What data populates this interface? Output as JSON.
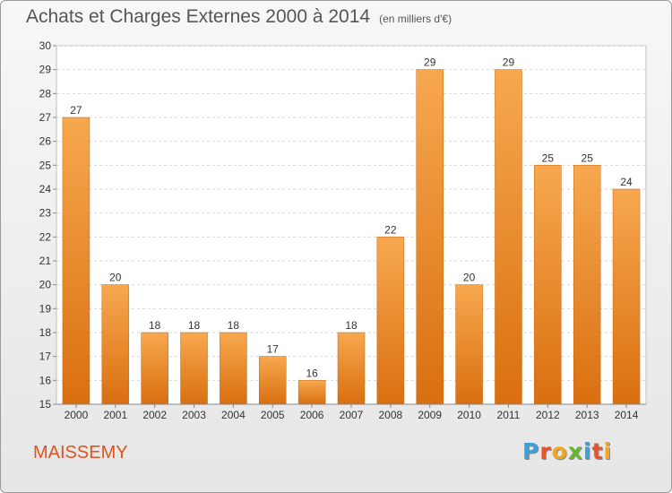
{
  "title": "Achats et Charges Externes 2000 à 2014",
  "subtitle": "(en milliers d'€)",
  "commune": "MAISSEMY",
  "logo": {
    "text": "Proxiti",
    "letter_colors": [
      "#3aa0d8",
      "#e8552a",
      "#f2a81d",
      "#6bb52e",
      "#3aa0d8",
      "#e8552a",
      "#f2a81d"
    ]
  },
  "colors": {
    "bar_light": "#f7a84f",
    "bar_dark": "#d96f10",
    "commune_text": "#e0531c"
  },
  "chart_data": {
    "type": "bar",
    "title": "Achats et Charges Externes 2000 à 2014",
    "subtitle": "(en milliers d'€)",
    "categories": [
      "2000",
      "2001",
      "2002",
      "2003",
      "2004",
      "2005",
      "2006",
      "2007",
      "2008",
      "2009",
      "2010",
      "2011",
      "2012",
      "2013",
      "2014"
    ],
    "values": [
      27,
      20,
      18,
      18,
      18,
      17,
      16,
      18,
      22,
      29,
      20,
      29,
      25,
      25,
      24
    ],
    "data_labels": [
      "27",
      "20",
      "18",
      "18",
      "18",
      "17",
      "16",
      "18",
      "22",
      "29",
      "20",
      "29",
      "25",
      "25",
      "24"
    ],
    "ylim": [
      15,
      30
    ],
    "yticks": [
      "15",
      "16",
      "17",
      "18",
      "19",
      "20",
      "21",
      "22",
      "23",
      "24",
      "25",
      "26",
      "27",
      "28",
      "29",
      "30"
    ],
    "grid": true,
    "legend": "none"
  }
}
